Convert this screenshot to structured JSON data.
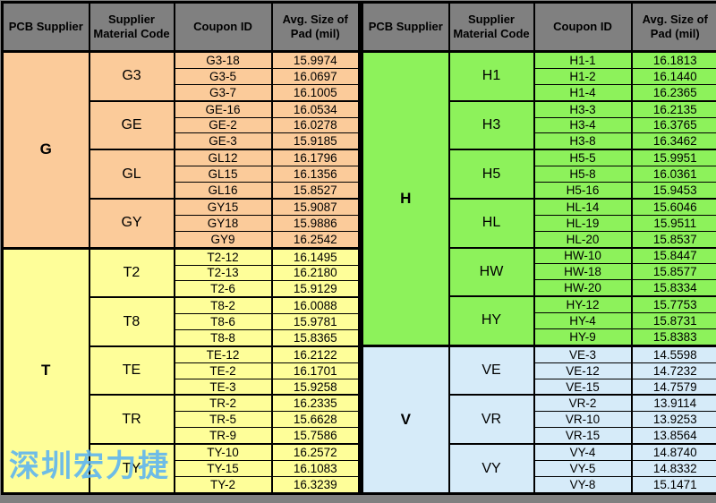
{
  "header": [
    "PCB Supplier",
    "Supplier Material Code",
    "Coupon ID",
    "Avg. Size of Pad (mil)"
  ],
  "colors": {
    "page_bg": "#808080",
    "header_bg": "#808080",
    "border": "#000000",
    "supplier_g": "#FBCB9A",
    "supplier_t": "#FEFE99",
    "supplier_h": "#8DF25B",
    "supplier_v": "#D6EBF9",
    "watermark": "#5FB5EF"
  },
  "tables": [
    {
      "suppliers": [
        {
          "name": "G",
          "color": "#FBCB9A",
          "groups": [
            {
              "code": "G3",
              "rows": [
                [
                  "G3-18",
                  "15.9974"
                ],
                [
                  "G3-5",
                  "16.0697"
                ],
                [
                  "G3-7",
                  "16.1005"
                ]
              ]
            },
            {
              "code": "GE",
              "rows": [
                [
                  "GE-16",
                  "16.0534"
                ],
                [
                  "GE-2",
                  "16.0278"
                ],
                [
                  "GE-3",
                  "15.9185"
                ]
              ]
            },
            {
              "code": "GL",
              "rows": [
                [
                  "GL12",
                  "16.1796"
                ],
                [
                  "GL15",
                  "16.1356"
                ],
                [
                  "GL16",
                  "15.8527"
                ]
              ]
            },
            {
              "code": "GY",
              "rows": [
                [
                  "GY15",
                  "15.9087"
                ],
                [
                  "GY18",
                  "15.9886"
                ],
                [
                  "GY9",
                  "16.2542"
                ]
              ]
            }
          ]
        },
        {
          "name": "T",
          "color": "#FEFE99",
          "groups": [
            {
              "code": "T2",
              "rows": [
                [
                  "T2-12",
                  "16.1495"
                ],
                [
                  "T2-13",
                  "16.2180"
                ],
                [
                  "T2-6",
                  "15.9129"
                ]
              ]
            },
            {
              "code": "T8",
              "rows": [
                [
                  "T8-2",
                  "16.0088"
                ],
                [
                  "T8-6",
                  "15.9781"
                ],
                [
                  "T8-8",
                  "15.8365"
                ]
              ]
            },
            {
              "code": "TE",
              "rows": [
                [
                  "TE-12",
                  "16.2122"
                ],
                [
                  "TE-2",
                  "16.1701"
                ],
                [
                  "TE-3",
                  "15.9258"
                ]
              ]
            },
            {
              "code": "TR",
              "rows": [
                [
                  "TR-2",
                  "16.2335"
                ],
                [
                  "TR-5",
                  "15.6628"
                ],
                [
                  "TR-9",
                  "15.7586"
                ]
              ]
            },
            {
              "code": "TY",
              "rows": [
                [
                  "TY-10",
                  "16.2572"
                ],
                [
                  "TY-15",
                  "16.1083"
                ],
                [
                  "TY-2",
                  "16.3239"
                ]
              ]
            }
          ]
        }
      ]
    },
    {
      "suppliers": [
        {
          "name": "H",
          "color": "#8DF25B",
          "groups": [
            {
              "code": "H1",
              "rows": [
                [
                  "H1-1",
                  "16.1813"
                ],
                [
                  "H1-2",
                  "16.1440"
                ],
                [
                  "H1-4",
                  "16.2365"
                ]
              ]
            },
            {
              "code": "H3",
              "rows": [
                [
                  "H3-3",
                  "16.2135"
                ],
                [
                  "H3-4",
                  "16.3765"
                ],
                [
                  "H3-8",
                  "16.3462"
                ]
              ]
            },
            {
              "code": "H5",
              "rows": [
                [
                  "H5-5",
                  "15.9951"
                ],
                [
                  "H5-8",
                  "16.0361"
                ],
                [
                  "H5-16",
                  "15.9453"
                ]
              ]
            },
            {
              "code": "HL",
              "rows": [
                [
                  "HL-14",
                  "15.6046"
                ],
                [
                  "HL-19",
                  "15.9511"
                ],
                [
                  "HL-20",
                  "15.8537"
                ]
              ]
            },
            {
              "code": "HW",
              "rows": [
                [
                  "HW-10",
                  "15.8447"
                ],
                [
                  "HW-18",
                  "15.8577"
                ],
                [
                  "HW-20",
                  "15.8334"
                ]
              ]
            },
            {
              "code": "HY",
              "rows": [
                [
                  "HY-12",
                  "15.7753"
                ],
                [
                  "HY-4",
                  "15.8731"
                ],
                [
                  "HY-9",
                  "15.8383"
                ]
              ]
            }
          ]
        },
        {
          "name": "V",
          "color": "#D6EBF9",
          "groups": [
            {
              "code": "VE",
              "rows": [
                [
                  "VE-3",
                  "14.5598"
                ],
                [
                  "VE-12",
                  "14.7232"
                ],
                [
                  "VE-15",
                  "14.7579"
                ]
              ]
            },
            {
              "code": "VR",
              "rows": [
                [
                  "VR-2",
                  "13.9114"
                ],
                [
                  "VR-10",
                  "13.9253"
                ],
                [
                  "VR-15",
                  "13.8564"
                ]
              ]
            },
            {
              "code": "VY",
              "rows": [
                [
                  "VY-4",
                  "14.8740"
                ],
                [
                  "VY-5",
                  "14.8332"
                ],
                [
                  "VY-8",
                  "15.1471"
                ]
              ]
            }
          ]
        }
      ]
    }
  ],
  "watermark": {
    "text": "深圳宏力捷",
    "color": "#5FB5EF"
  }
}
